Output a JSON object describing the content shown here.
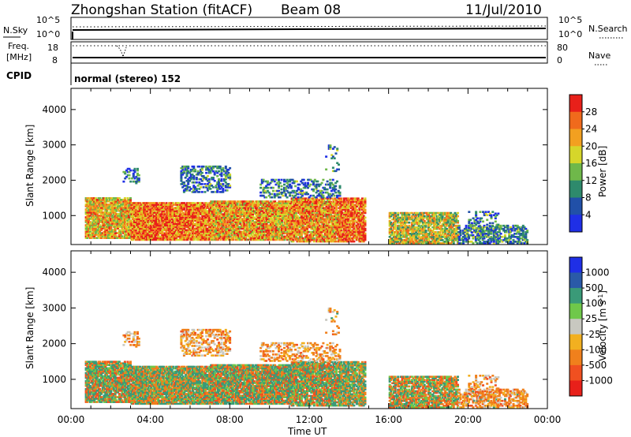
{
  "header": {
    "title": "Zhongshan Station (fitACF)",
    "beam": "Beam 08",
    "date": "11/Jul/2010"
  },
  "status_panels": {
    "nsky_label": "N.Sky",
    "nsearch_label": "N.Search",
    "noise_ticks_left": [
      "10^5",
      "10^0"
    ],
    "noise_ticks_right": [
      "10^5",
      "10^0"
    ],
    "freq_label_line1": "Freq.",
    "freq_label_line2": "[MHz]",
    "freq_ticks": [
      "18",
      "8"
    ],
    "nave_label": "Nave",
    "nave_ticks": [
      "80",
      "0"
    ],
    "cpid_label": "CPID",
    "cpid_value": "normal (stereo) 152"
  },
  "chart_data": [
    {
      "type": "heatmap",
      "name": "power-panel",
      "ylabel": "Slant Range [km]",
      "yticks": [
        "1000",
        "2000",
        "3000",
        "4000"
      ],
      "ylim": [
        180,
        4600
      ],
      "colorbar_label": "Power [dB]",
      "colorbar_ticks": [
        "4",
        "8",
        "12",
        "16",
        "20",
        "24",
        "28"
      ],
      "colorbar_colors": [
        "#1f2fe6",
        "#2150a8",
        "#2e8a6c",
        "#6fb84a",
        "#d6d62a",
        "#f2a020",
        "#f06a1c",
        "#e8201a"
      ],
      "colorbar_range": [
        0,
        32
      ]
    },
    {
      "type": "heatmap",
      "name": "velocity-panel",
      "ylabel": "Slant Range [km]",
      "yticks": [
        "1000",
        "2000",
        "3000",
        "4000"
      ],
      "ylim": [
        180,
        4600
      ],
      "colorbar_label": "Velocity [m s",
      "colorbar_label_sup": "-1",
      "colorbar_label_end": "]",
      "colorbar_ticks": [
        "1000",
        "500",
        "100",
        "25",
        "-25",
        "-100",
        "-500",
        "-1000"
      ],
      "colorbar_colors": [
        "#e8201a",
        "#f05020",
        "#f0801c",
        "#f2b020",
        "#c8c8c0",
        "#6fc84a",
        "#3a9a78",
        "#2a5aa8",
        "#1f2fe6"
      ]
    }
  ],
  "xaxis": {
    "label": "Time UT",
    "ticks": [
      "00:00",
      "04:00",
      "08:00",
      "12:00",
      "16:00",
      "20:00",
      "00:00"
    ],
    "range_hours": [
      0,
      24
    ]
  }
}
